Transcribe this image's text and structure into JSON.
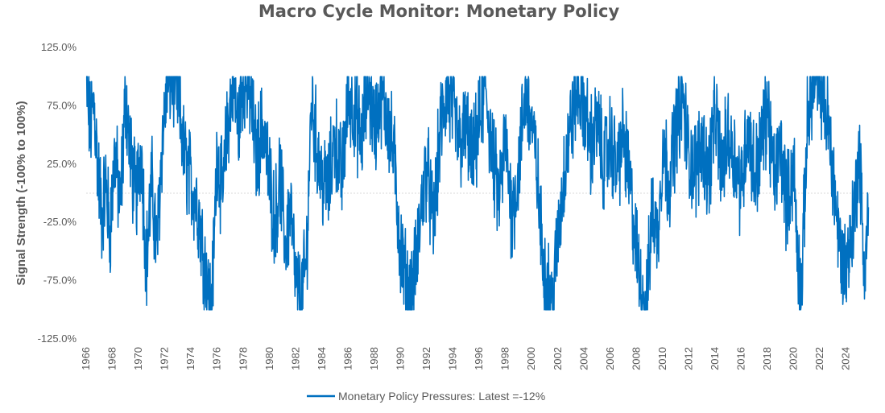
{
  "chart_data": {
    "type": "line",
    "title": "Macro Cycle Monitor: Monetary Policy",
    "ylabel": "Signal Strength (-100% to 100%)",
    "xlabel": "",
    "ylim": [
      -125,
      125
    ],
    "xlim": [
      1966,
      2025.8
    ],
    "y_ticks": [
      -125,
      -75,
      -25,
      25,
      75,
      125
    ],
    "y_tick_labels": [
      "-125.0%",
      "-75.0%",
      "-25.0%",
      "25.0%",
      "75.0%",
      "125.0%"
    ],
    "x_ticks": [
      1966,
      1968,
      1970,
      1972,
      1974,
      1976,
      1978,
      1980,
      1982,
      1984,
      1986,
      1988,
      1990,
      1992,
      1994,
      1996,
      1998,
      2000,
      2002,
      2004,
      2006,
      2008,
      2010,
      2012,
      2014,
      2016,
      2018,
      2020,
      2022,
      2024
    ],
    "x_tick_labels": [
      "1966",
      "1968",
      "1970",
      "1972",
      "1974",
      "1976",
      "1978",
      "1980",
      "1982",
      "1984",
      "1986",
      "1988",
      "1990",
      "1992",
      "1994",
      "1996",
      "1998",
      "2000",
      "2002",
      "2004",
      "2006",
      "2008",
      "2010",
      "2012",
      "2014",
      "2016",
      "2018",
      "2020",
      "2022",
      "2024"
    ],
    "zero_line": true,
    "legend_position": "bottom",
    "series": [
      {
        "name": "Monetary Policy Pressures: Latest =-12%",
        "color": "#0070C0",
        "x": [
          1966.0,
          1966.3,
          1966.6,
          1966.9,
          1967.2,
          1967.5,
          1967.8,
          1968.2,
          1968.6,
          1969.0,
          1969.4,
          1969.8,
          1970.2,
          1970.6,
          1971.0,
          1971.4,
          1971.8,
          1972.2,
          1972.6,
          1973.0,
          1973.5,
          1974.0,
          1974.5,
          1975.0,
          1975.3,
          1975.6,
          1976.0,
          1976.4,
          1976.8,
          1977.2,
          1977.6,
          1978.0,
          1978.5,
          1979.0,
          1979.5,
          1980.0,
          1980.4,
          1980.8,
          1981.2,
          1981.6,
          1982.0,
          1982.4,
          1982.8,
          1983.2,
          1983.6,
          1984.0,
          1984.5,
          1985.0,
          1985.5,
          1986.0,
          1986.5,
          1987.0,
          1987.5,
          1988.0,
          1988.5,
          1989.0,
          1989.5,
          1990.0,
          1990.4,
          1990.8,
          1991.2,
          1991.6,
          1992.0,
          1992.5,
          1993.0,
          1993.5,
          1994.0,
          1994.5,
          1995.0,
          1995.5,
          1996.0,
          1996.5,
          1997.0,
          1997.5,
          1998.0,
          1998.5,
          1999.0,
          1999.5,
          2000.0,
          2000.4,
          2000.8,
          2001.2,
          2001.6,
          2002.0,
          2002.5,
          2003.0,
          2003.5,
          2004.0,
          2004.5,
          2005.0,
          2005.5,
          2006.0,
          2006.5,
          2007.0,
          2007.5,
          2008.0,
          2008.4,
          2008.8,
          2009.2,
          2009.6,
          2010.0,
          2010.5,
          2011.0,
          2011.5,
          2012.0,
          2012.5,
          2013.0,
          2013.5,
          2014.0,
          2014.5,
          2015.0,
          2015.5,
          2016.0,
          2016.5,
          2017.0,
          2017.5,
          2018.0,
          2018.5,
          2019.0,
          2019.5,
          2020.0,
          2020.3,
          2020.6,
          2021.0,
          2021.4,
          2021.8,
          2022.2,
          2022.6,
          2023.0,
          2023.4,
          2023.8,
          2024.2,
          2024.6,
          2025.0,
          2025.4,
          2025.7
        ],
        "values": [
          95,
          55,
          78,
          20,
          -20,
          10,
          -35,
          35,
          -15,
          85,
          30,
          -5,
          40,
          -60,
          10,
          -50,
          45,
          95,
          100,
          85,
          30,
          10,
          -10,
          -55,
          -85,
          -95,
          40,
          -5,
          60,
          95,
          55,
          100,
          85,
          30,
          60,
          10,
          -25,
          15,
          -45,
          -10,
          -80,
          -95,
          -60,
          80,
          40,
          10,
          5,
          50,
          10,
          85,
          70,
          45,
          95,
          55,
          85,
          65,
          30,
          -50,
          -75,
          -90,
          -60,
          -10,
          25,
          -30,
          50,
          85,
          70,
          40,
          55,
          25,
          60,
          90,
          30,
          -5,
          45,
          -20,
          20,
          85,
          60,
          20,
          -50,
          -80,
          -95,
          -40,
          20,
          60,
          90,
          75,
          40,
          60,
          25,
          45,
          20,
          50,
          5,
          -50,
          -85,
          -95,
          -10,
          -40,
          40,
          10,
          55,
          85,
          30,
          20,
          45,
          15,
          70,
          20,
          50,
          30,
          5,
          60,
          15,
          40,
          75,
          10,
          40,
          -10,
          25,
          -55,
          -85,
          50,
          95,
          95,
          90,
          60,
          20,
          -35,
          -65,
          -50,
          -20,
          40,
          -70,
          -12
        ]
      }
    ]
  }
}
